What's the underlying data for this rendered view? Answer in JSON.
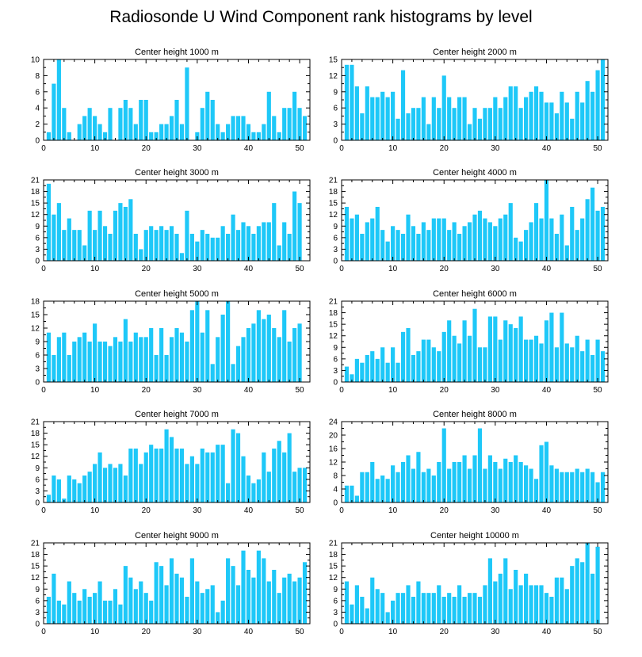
{
  "title": "Radiosonde U Wind Component rank histograms by level",
  "colors": {
    "bar": "#1ec8f8",
    "frame": "#000000"
  },
  "chart_data": [
    {
      "type": "bar",
      "title": "Center height 1000 m",
      "xlim": [
        0,
        52
      ],
      "ylim": [
        0,
        10
      ],
      "xticks": [
        0,
        10,
        20,
        30,
        40,
        50
      ],
      "yticks": [
        0,
        2,
        4,
        6,
        8,
        10
      ],
      "x": [
        0,
        1,
        2,
        3,
        4,
        5,
        6,
        7,
        8,
        9,
        10,
        11,
        12,
        13,
        14,
        15,
        16,
        17,
        18,
        19,
        20,
        21,
        22,
        23,
        24,
        25,
        26,
        27,
        28,
        29,
        30,
        31,
        32,
        33,
        34,
        35,
        36,
        37,
        38,
        39,
        40,
        41,
        42,
        43,
        44,
        45,
        46,
        47,
        48,
        49,
        50,
        51,
        52
      ],
      "values": [
        0,
        1,
        7,
        10,
        4,
        1,
        0,
        2,
        3,
        4,
        3,
        2,
        1,
        4,
        0,
        4,
        5,
        4,
        2,
        5,
        5,
        1,
        1,
        2,
        2,
        3,
        5,
        2,
        9,
        0,
        1,
        4,
        6,
        5,
        2,
        1,
        2,
        3,
        3,
        3,
        2,
        1,
        1,
        2,
        6,
        3,
        1,
        4,
        4,
        6,
        4,
        3,
        0
      ]
    },
    {
      "type": "bar",
      "title": "Center height 2000 m",
      "xlim": [
        0,
        52
      ],
      "ylim": [
        0,
        15
      ],
      "xticks": [
        0,
        10,
        20,
        30,
        40,
        50
      ],
      "yticks": [
        0,
        3,
        6,
        9,
        12,
        15
      ],
      "x": [
        0,
        1,
        2,
        3,
        4,
        5,
        6,
        7,
        8,
        9,
        10,
        11,
        12,
        13,
        14,
        15,
        16,
        17,
        18,
        19,
        20,
        21,
        22,
        23,
        24,
        25,
        26,
        27,
        28,
        29,
        30,
        31,
        32,
        33,
        34,
        35,
        36,
        37,
        38,
        39,
        40,
        41,
        42,
        43,
        44,
        45,
        46,
        47,
        48,
        49,
        50,
        51,
        52
      ],
      "values": [
        0,
        14,
        14,
        10,
        5,
        10,
        8,
        8,
        9,
        8,
        9,
        4,
        13,
        5,
        6,
        6,
        8,
        3,
        8,
        6,
        12,
        8,
        6,
        8,
        8,
        3,
        6,
        4,
        6,
        6,
        8,
        6,
        8,
        10,
        10,
        6,
        8,
        9,
        10,
        9,
        7,
        7,
        5,
        9,
        7,
        4,
        9,
        7,
        11,
        9,
        13,
        15,
        0
      ]
    },
    {
      "type": "bar",
      "title": "Center height 3000 m",
      "xlim": [
        0,
        52
      ],
      "ylim": [
        0,
        21
      ],
      "xticks": [
        0,
        10,
        20,
        30,
        40,
        50
      ],
      "yticks": [
        0,
        3,
        6,
        9,
        12,
        15,
        18,
        21
      ],
      "x": [
        0,
        1,
        2,
        3,
        4,
        5,
        6,
        7,
        8,
        9,
        10,
        11,
        12,
        13,
        14,
        15,
        16,
        17,
        18,
        19,
        20,
        21,
        22,
        23,
        24,
        25,
        26,
        27,
        28,
        29,
        30,
        31,
        32,
        33,
        34,
        35,
        36,
        37,
        38,
        39,
        40,
        41,
        42,
        43,
        44,
        45,
        46,
        47,
        48,
        49,
        50,
        51,
        52
      ],
      "values": [
        0,
        20,
        12,
        15,
        8,
        11,
        8,
        8,
        4,
        13,
        8,
        13,
        9,
        7,
        13,
        15,
        14,
        16,
        7,
        3,
        8,
        9,
        8,
        9,
        8,
        9,
        7,
        2,
        13,
        7,
        5,
        8,
        7,
        6,
        6,
        9,
        7,
        12,
        8,
        10,
        9,
        7,
        9,
        10,
        10,
        15,
        4,
        10,
        7,
        18,
        15,
        0,
        0
      ]
    },
    {
      "type": "bar",
      "title": "Center height 4000 m",
      "xlim": [
        0,
        52
      ],
      "ylim": [
        0,
        21
      ],
      "xticks": [
        0,
        10,
        20,
        30,
        40,
        50
      ],
      "yticks": [
        0,
        3,
        6,
        9,
        12,
        15,
        18,
        21
      ],
      "x": [
        0,
        1,
        2,
        3,
        4,
        5,
        6,
        7,
        8,
        9,
        10,
        11,
        12,
        13,
        14,
        15,
        16,
        17,
        18,
        19,
        20,
        21,
        22,
        23,
        24,
        25,
        26,
        27,
        28,
        29,
        30,
        31,
        32,
        33,
        34,
        35,
        36,
        37,
        38,
        39,
        40,
        41,
        42,
        43,
        44,
        45,
        46,
        47,
        48,
        49,
        50,
        51,
        52
      ],
      "values": [
        0,
        14,
        11,
        12,
        7,
        10,
        11,
        14,
        8,
        5,
        9,
        8,
        7,
        12,
        9,
        7,
        10,
        8,
        11,
        11,
        11,
        8,
        10,
        7,
        9,
        10,
        12,
        13,
        11,
        10,
        9,
        11,
        12,
        15,
        6,
        5,
        8,
        10,
        15,
        11,
        21,
        11,
        7,
        12,
        4,
        14,
        8,
        11,
        16,
        19,
        13,
        14,
        0
      ]
    },
    {
      "type": "bar",
      "title": "Center height 5000 m",
      "xlim": [
        0,
        52
      ],
      "ylim": [
        0,
        18
      ],
      "xticks": [
        0,
        10,
        20,
        30,
        40,
        50
      ],
      "yticks": [
        0,
        3,
        6,
        9,
        12,
        15,
        18
      ],
      "x": [
        0,
        1,
        2,
        3,
        4,
        5,
        6,
        7,
        8,
        9,
        10,
        11,
        12,
        13,
        14,
        15,
        16,
        17,
        18,
        19,
        20,
        21,
        22,
        23,
        24,
        25,
        26,
        27,
        28,
        29,
        30,
        31,
        32,
        33,
        34,
        35,
        36,
        37,
        38,
        39,
        40,
        41,
        42,
        43,
        44,
        45,
        46,
        47,
        48,
        49,
        50,
        51,
        52
      ],
      "values": [
        0,
        11,
        6,
        10,
        11,
        6,
        9,
        10,
        11,
        9,
        13,
        9,
        9,
        8,
        10,
        9,
        14,
        9,
        11,
        10,
        10,
        12,
        6,
        12,
        6,
        10,
        12,
        11,
        9,
        16,
        18,
        11,
        16,
        4,
        10,
        15,
        18,
        4,
        8,
        10,
        12,
        13,
        16,
        14,
        15,
        12,
        10,
        16,
        9,
        12,
        13,
        0,
        0
      ]
    },
    {
      "type": "bar",
      "title": "Center height 6000 m",
      "xlim": [
        0,
        52
      ],
      "ylim": [
        0,
        21
      ],
      "xticks": [
        0,
        10,
        20,
        30,
        40,
        50
      ],
      "yticks": [
        0,
        3,
        6,
        9,
        12,
        15,
        18,
        21
      ],
      "x": [
        0,
        1,
        2,
        3,
        4,
        5,
        6,
        7,
        8,
        9,
        10,
        11,
        12,
        13,
        14,
        15,
        16,
        17,
        18,
        19,
        20,
        21,
        22,
        23,
        24,
        25,
        26,
        27,
        28,
        29,
        30,
        31,
        32,
        33,
        34,
        35,
        36,
        37,
        38,
        39,
        40,
        41,
        42,
        43,
        44,
        45,
        46,
        47,
        48,
        49,
        50,
        51,
        52
      ],
      "values": [
        0,
        4,
        2,
        6,
        5,
        7,
        8,
        6,
        9,
        5,
        9,
        5,
        13,
        14,
        7,
        8,
        11,
        11,
        9,
        8,
        13,
        16,
        12,
        10,
        16,
        12,
        19,
        9,
        9,
        17,
        17,
        11,
        16,
        15,
        14,
        17,
        11,
        11,
        12,
        10,
        16,
        18,
        9,
        18,
        10,
        9,
        12,
        8,
        11,
        7,
        11,
        8,
        0
      ]
    },
    {
      "type": "bar",
      "title": "Center height 7000 m",
      "xlim": [
        0,
        52
      ],
      "ylim": [
        0,
        21
      ],
      "xticks": [
        0,
        10,
        20,
        30,
        40,
        50
      ],
      "yticks": [
        0,
        3,
        6,
        9,
        12,
        15,
        18,
        21
      ],
      "x": [
        0,
        1,
        2,
        3,
        4,
        5,
        6,
        7,
        8,
        9,
        10,
        11,
        12,
        13,
        14,
        15,
        16,
        17,
        18,
        19,
        20,
        21,
        22,
        23,
        24,
        25,
        26,
        27,
        28,
        29,
        30,
        31,
        32,
        33,
        34,
        35,
        36,
        37,
        38,
        39,
        40,
        41,
        42,
        43,
        44,
        45,
        46,
        47,
        48,
        49,
        50,
        51,
        52
      ],
      "values": [
        0,
        2,
        7,
        6,
        1,
        7,
        6,
        5,
        7,
        8,
        10,
        13,
        9,
        10,
        9,
        10,
        7,
        14,
        14,
        10,
        13,
        15,
        14,
        14,
        19,
        17,
        14,
        14,
        10,
        12,
        10,
        14,
        13,
        13,
        15,
        15,
        5,
        19,
        18,
        12,
        7,
        5,
        6,
        13,
        8,
        14,
        16,
        13,
        18,
        8,
        9,
        9,
        0
      ]
    },
    {
      "type": "bar",
      "title": "Center height 8000 m",
      "xlim": [
        0,
        52
      ],
      "ylim": [
        0,
        24
      ],
      "xticks": [
        0,
        10,
        20,
        30,
        40,
        50
      ],
      "yticks": [
        0,
        4,
        8,
        12,
        16,
        20,
        24
      ],
      "x": [
        0,
        1,
        2,
        3,
        4,
        5,
        6,
        7,
        8,
        9,
        10,
        11,
        12,
        13,
        14,
        15,
        16,
        17,
        18,
        19,
        20,
        21,
        22,
        23,
        24,
        25,
        26,
        27,
        28,
        29,
        30,
        31,
        32,
        33,
        34,
        35,
        36,
        37,
        38,
        39,
        40,
        41,
        42,
        43,
        44,
        45,
        46,
        47,
        48,
        49,
        50,
        51,
        52
      ],
      "values": [
        0,
        5,
        5,
        2,
        9,
        9,
        12,
        7,
        8,
        7,
        11,
        9,
        12,
        14,
        10,
        15,
        9,
        10,
        8,
        12,
        22,
        10,
        12,
        12,
        14,
        10,
        14,
        22,
        10,
        14,
        12,
        10,
        13,
        12,
        14,
        12,
        11,
        10,
        7,
        17,
        18,
        11,
        10,
        9,
        9,
        9,
        10,
        9,
        10,
        9,
        6,
        9,
        0
      ]
    },
    {
      "type": "bar",
      "title": "Center height 9000 m",
      "xlim": [
        0,
        52
      ],
      "ylim": [
        0,
        21
      ],
      "xticks": [
        0,
        10,
        20,
        30,
        40,
        50
      ],
      "yticks": [
        0,
        3,
        6,
        9,
        12,
        15,
        18,
        21
      ],
      "x": [
        0,
        1,
        2,
        3,
        4,
        5,
        6,
        7,
        8,
        9,
        10,
        11,
        12,
        13,
        14,
        15,
        16,
        17,
        18,
        19,
        20,
        21,
        22,
        23,
        24,
        25,
        26,
        27,
        28,
        29,
        30,
        31,
        32,
        33,
        34,
        35,
        36,
        37,
        38,
        39,
        40,
        41,
        42,
        43,
        44,
        45,
        46,
        47,
        48,
        49,
        50,
        51,
        52
      ],
      "values": [
        0,
        7,
        13,
        6,
        5,
        11,
        8,
        6,
        9,
        7,
        8,
        11,
        6,
        6,
        9,
        5,
        15,
        12,
        9,
        11,
        8,
        6,
        16,
        15,
        10,
        17,
        13,
        12,
        7,
        17,
        11,
        8,
        9,
        10,
        3,
        6,
        17,
        15,
        10,
        19,
        14,
        12,
        19,
        17,
        11,
        14,
        8,
        12,
        13,
        11,
        12,
        16,
        0
      ]
    },
    {
      "type": "bar",
      "title": "Center height 10000 m",
      "xlim": [
        0,
        52
      ],
      "ylim": [
        0,
        21
      ],
      "xticks": [
        0,
        10,
        20,
        30,
        40,
        50
      ],
      "yticks": [
        0,
        3,
        6,
        9,
        12,
        15,
        18,
        21
      ],
      "x": [
        0,
        1,
        2,
        3,
        4,
        5,
        6,
        7,
        8,
        9,
        10,
        11,
        12,
        13,
        14,
        15,
        16,
        17,
        18,
        19,
        20,
        21,
        22,
        23,
        24,
        25,
        26,
        27,
        28,
        29,
        30,
        31,
        32,
        33,
        34,
        35,
        36,
        37,
        38,
        39,
        40,
        41,
        42,
        43,
        44,
        45,
        46,
        47,
        48,
        49,
        50,
        51,
        52
      ],
      "values": [
        0,
        11,
        5,
        10,
        7,
        4,
        12,
        9,
        8,
        3,
        6,
        8,
        8,
        10,
        7,
        11,
        8,
        8,
        8,
        10,
        7,
        8,
        7,
        10,
        7,
        8,
        8,
        7,
        10,
        17,
        11,
        13,
        17,
        9,
        14,
        10,
        13,
        10,
        10,
        10,
        8,
        7,
        12,
        12,
        9,
        15,
        17,
        16,
        21,
        13,
        20,
        0,
        0
      ]
    }
  ]
}
